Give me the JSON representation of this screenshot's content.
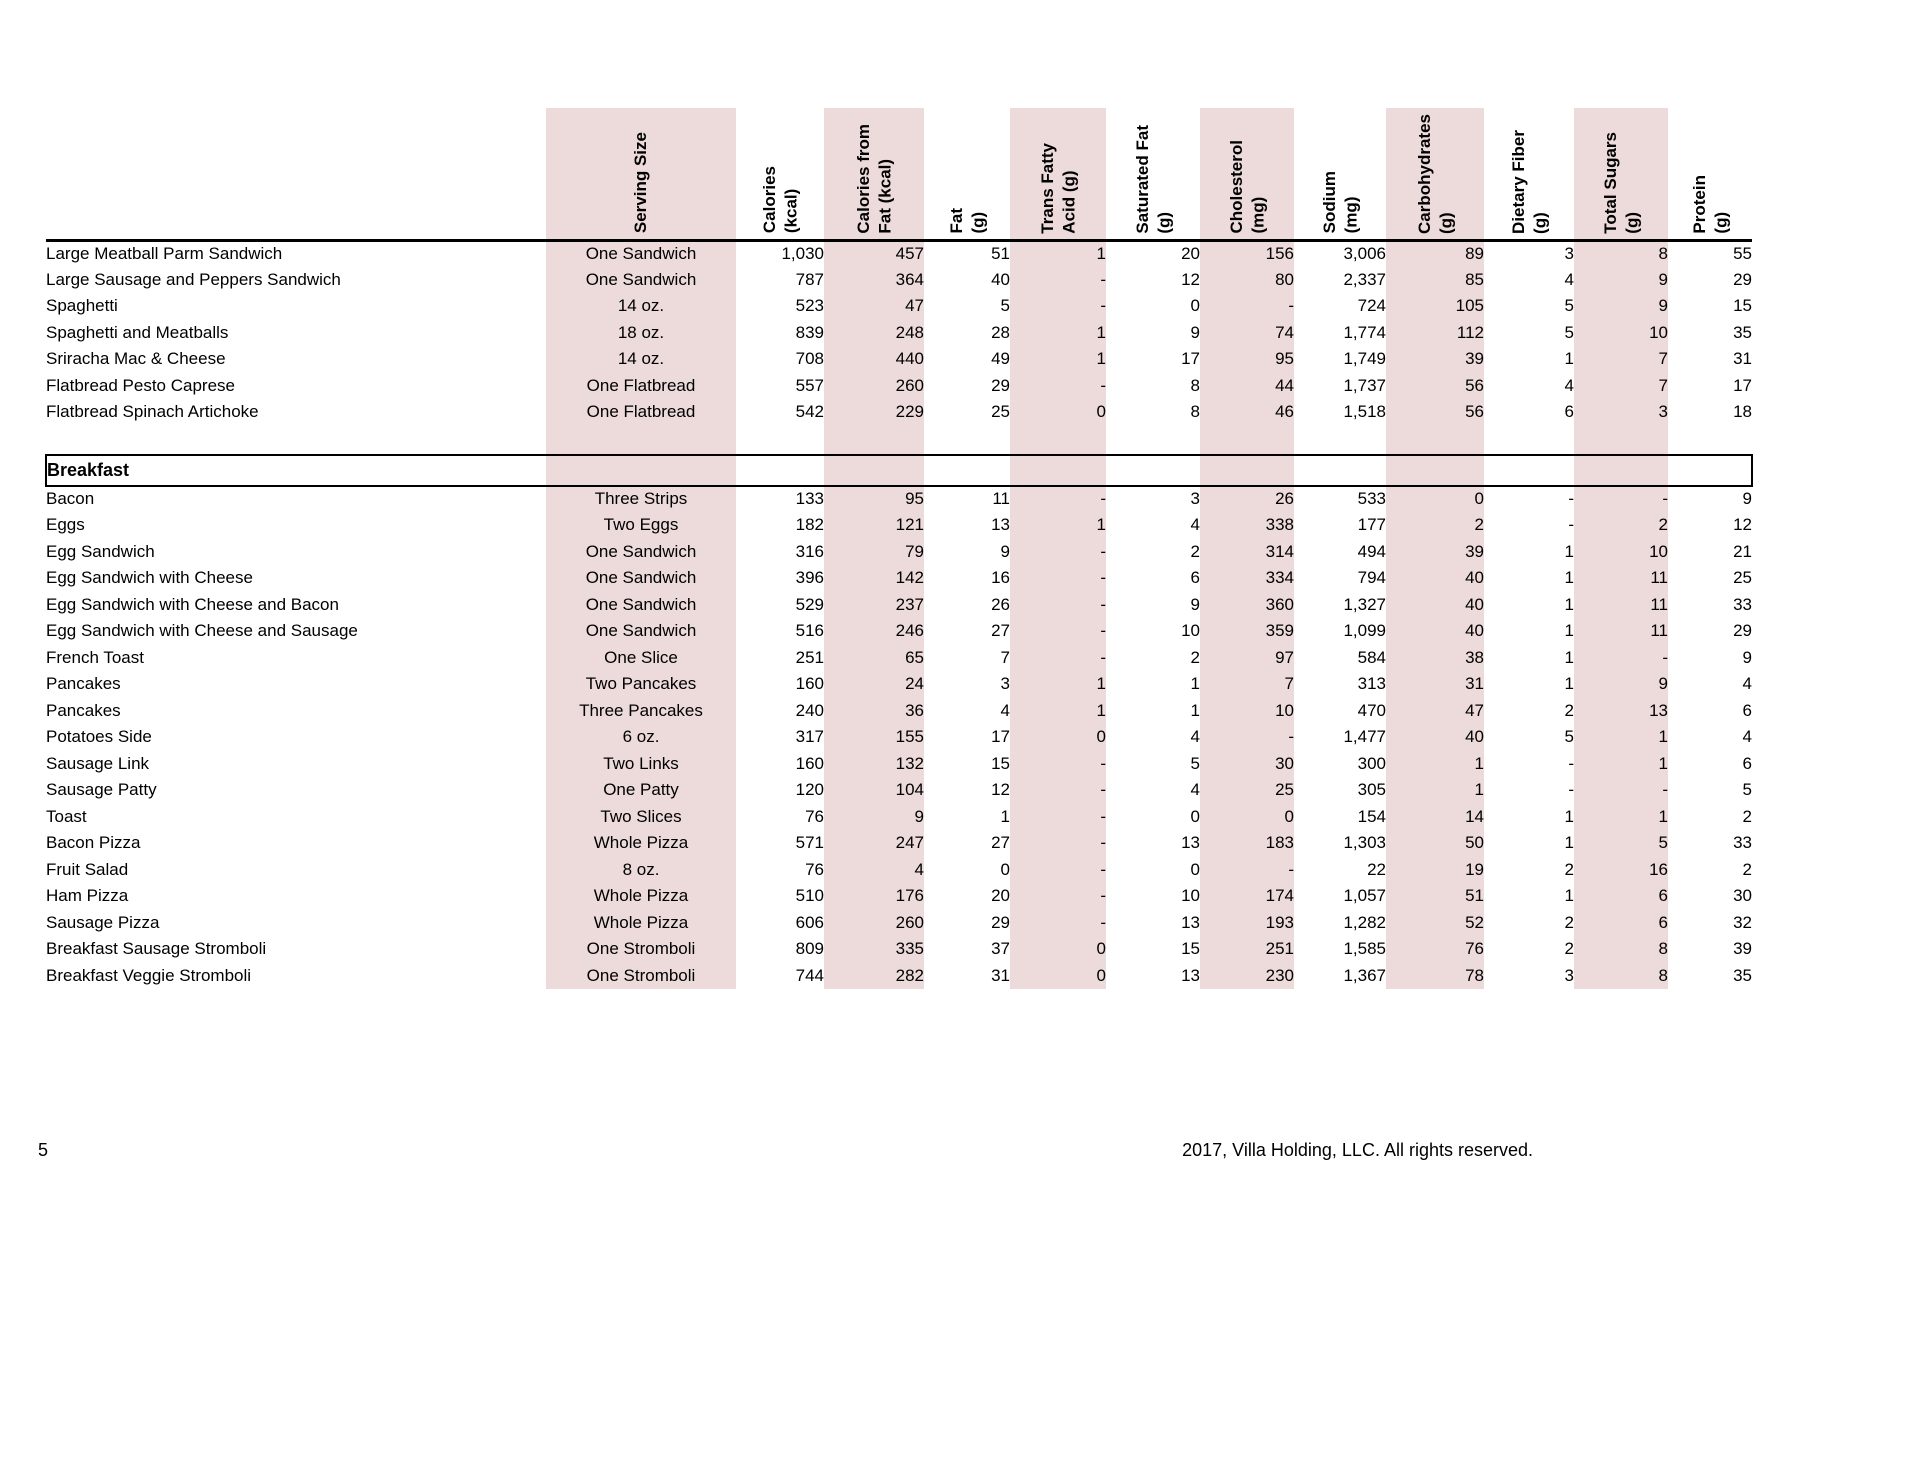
{
  "page": {
    "number": "5",
    "copyright": "2017, Villa Holding, LLC. All rights reserved."
  },
  "colors": {
    "shade": "#EDDADA"
  },
  "table": {
    "columns": [
      {
        "label": "Serving Size",
        "shaded": true,
        "align": "center"
      },
      {
        "label": "Calories\n(kcal)",
        "shaded": false,
        "align": "right"
      },
      {
        "label": "Calories from\nFat (kcal)",
        "shaded": true,
        "align": "right"
      },
      {
        "label": "Fat\n(g)",
        "shaded": false,
        "align": "right"
      },
      {
        "label": "Trans Fatty\nAcid (g)",
        "shaded": true,
        "align": "right"
      },
      {
        "label": "Saturated Fat\n(g)",
        "shaded": false,
        "align": "right"
      },
      {
        "label": "Cholesterol\n(mg)",
        "shaded": true,
        "align": "right"
      },
      {
        "label": "Sodium\n(mg)",
        "shaded": false,
        "align": "right"
      },
      {
        "label": "Carbohydrates\n(g)",
        "shaded": true,
        "align": "right"
      },
      {
        "label": "Dietary Fiber\n(g)",
        "shaded": false,
        "align": "right"
      },
      {
        "label": "Total Sugars\n(g)",
        "shaded": true,
        "align": "right"
      },
      {
        "label": "Protein\n(g)",
        "shaded": false,
        "align": "right"
      }
    ],
    "sections": [
      {
        "title": null,
        "rows": [
          [
            "Large Meatball Parm Sandwich",
            "One Sandwich",
            "1,030",
            "457",
            "51",
            "1",
            "20",
            "156",
            "3,006",
            "89",
            "3",
            "8",
            "55"
          ],
          [
            "Large Sausage and Peppers Sandwich",
            "One Sandwich",
            "787",
            "364",
            "40",
            "-",
            "12",
            "80",
            "2,337",
            "85",
            "4",
            "9",
            "29"
          ],
          [
            "Spaghetti",
            "14 oz.",
            "523",
            "47",
            "5",
            "-",
            "0",
            "-",
            "724",
            "105",
            "5",
            "9",
            "15"
          ],
          [
            "Spaghetti and Meatballs",
            "18 oz.",
            "839",
            "248",
            "28",
            "1",
            "9",
            "74",
            "1,774",
            "112",
            "5",
            "10",
            "35"
          ],
          [
            "Sriracha Mac & Cheese",
            "14 oz.",
            "708",
            "440",
            "49",
            "1",
            "17",
            "95",
            "1,749",
            "39",
            "1",
            "7",
            "31"
          ],
          [
            "Flatbread Pesto Caprese",
            "One Flatbread",
            "557",
            "260",
            "29",
            "-",
            "8",
            "44",
            "1,737",
            "56",
            "4",
            "7",
            "17"
          ],
          [
            "Flatbread Spinach Artichoke",
            "One Flatbread",
            "542",
            "229",
            "25",
            "0",
            "8",
            "46",
            "1,518",
            "56",
            "6",
            "3",
            "18"
          ]
        ]
      },
      {
        "title": "Breakfast",
        "rows": [
          [
            "Bacon",
            "Three Strips",
            "133",
            "95",
            "11",
            "-",
            "3",
            "26",
            "533",
            "0",
            "-",
            "-",
            "9"
          ],
          [
            "Eggs",
            "Two Eggs",
            "182",
            "121",
            "13",
            "1",
            "4",
            "338",
            "177",
            "2",
            "-",
            "2",
            "12"
          ],
          [
            "Egg Sandwich",
            "One Sandwich",
            "316",
            "79",
            "9",
            "-",
            "2",
            "314",
            "494",
            "39",
            "1",
            "10",
            "21"
          ],
          [
            "Egg Sandwich with Cheese",
            "One Sandwich",
            "396",
            "142",
            "16",
            "-",
            "6",
            "334",
            "794",
            "40",
            "1",
            "11",
            "25"
          ],
          [
            "Egg Sandwich with Cheese and Bacon",
            "One Sandwich",
            "529",
            "237",
            "26",
            "-",
            "9",
            "360",
            "1,327",
            "40",
            "1",
            "11",
            "33"
          ],
          [
            "Egg Sandwich with Cheese and Sausage",
            "One Sandwich",
            "516",
            "246",
            "27",
            "-",
            "10",
            "359",
            "1,099",
            "40",
            "1",
            "11",
            "29"
          ],
          [
            "French Toast",
            "One Slice",
            "251",
            "65",
            "7",
            "-",
            "2",
            "97",
            "584",
            "38",
            "1",
            "-",
            "9"
          ],
          [
            "Pancakes",
            "Two Pancakes",
            "160",
            "24",
            "3",
            "1",
            "1",
            "7",
            "313",
            "31",
            "1",
            "9",
            "4"
          ],
          [
            "Pancakes",
            "Three Pancakes",
            "240",
            "36",
            "4",
            "1",
            "1",
            "10",
            "470",
            "47",
            "2",
            "13",
            "6"
          ],
          [
            "Potatoes Side",
            "6 oz.",
            "317",
            "155",
            "17",
            "0",
            "4",
            "-",
            "1,477",
            "40",
            "5",
            "1",
            "4"
          ],
          [
            "Sausage Link",
            "Two Links",
            "160",
            "132",
            "15",
            "-",
            "5",
            "30",
            "300",
            "1",
            "-",
            "1",
            "6"
          ],
          [
            "Sausage Patty",
            "One Patty",
            "120",
            "104",
            "12",
            "-",
            "4",
            "25",
            "305",
            "1",
            "-",
            "-",
            "5"
          ],
          [
            "Toast",
            "Two Slices",
            "76",
            "9",
            "1",
            "-",
            "0",
            "0",
            "154",
            "14",
            "1",
            "1",
            "2"
          ],
          [
            "Bacon Pizza",
            "Whole Pizza",
            "571",
            "247",
            "27",
            "-",
            "13",
            "183",
            "1,303",
            "50",
            "1",
            "5",
            "33"
          ],
          [
            "Fruit Salad",
            "8 oz.",
            "76",
            "4",
            "0",
            "-",
            "0",
            "-",
            "22",
            "19",
            "2",
            "16",
            "2"
          ],
          [
            "Ham Pizza",
            "Whole Pizza",
            "510",
            "176",
            "20",
            "-",
            "10",
            "174",
            "1,057",
            "51",
            "1",
            "6",
            "30"
          ],
          [
            "Sausage Pizza",
            "Whole Pizza",
            "606",
            "260",
            "29",
            "-",
            "13",
            "193",
            "1,282",
            "52",
            "2",
            "6",
            "32"
          ],
          [
            "Breakfast Sausage Stromboli",
            "One Stromboli",
            "809",
            "335",
            "37",
            "0",
            "15",
            "251",
            "1,585",
            "76",
            "2",
            "8",
            "39"
          ],
          [
            "Breakfast Veggie Stromboli",
            "One Stromboli",
            "744",
            "282",
            "31",
            "0",
            "13",
            "230",
            "1,367",
            "78",
            "3",
            "8",
            "35"
          ]
        ]
      }
    ]
  }
}
